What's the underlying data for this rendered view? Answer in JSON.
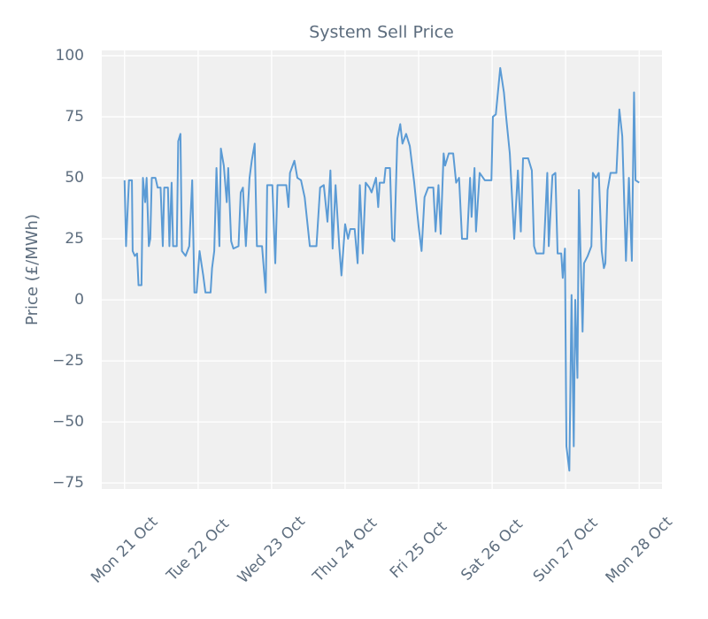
{
  "chart_data": {
    "type": "line",
    "title": "System Sell Price",
    "y_label": "Price (£/MWh)",
    "color": "#5b9bd5",
    "grid": true,
    "x": [
      0,
      0.02,
      0.06,
      0.1,
      0.11,
      0.14,
      0.17,
      0.19,
      0.23,
      0.25,
      0.28,
      0.3,
      0.33,
      0.35,
      0.37,
      0.42,
      0.45,
      0.49,
      0.52,
      0.54,
      0.59,
      0.61,
      0.64,
      0.66,
      0.71,
      0.73,
      0.76,
      0.78,
      0.83,
      0.88,
      0.92,
      0.95,
      0.98,
      1.02,
      1.07,
      1.1,
      1.17,
      1.19,
      1.22,
      1.25,
      1.29,
      1.31,
      1.35,
      1.39,
      1.41,
      1.45,
      1.48,
      1.55,
      1.58,
      1.61,
      1.65,
      1.7,
      1.73,
      1.77,
      1.8,
      1.87,
      1.92,
      1.94,
      2.01,
      2.05,
      2.08,
      2.2,
      2.23,
      2.25,
      2.31,
      2.35,
      2.4,
      2.45,
      2.52,
      2.61,
      2.66,
      2.71,
      2.76,
      2.8,
      2.83,
      2.87,
      2.92,
      2.95,
      3.0,
      3.04,
      3.07,
      3.13,
      3.17,
      3.2,
      3.24,
      3.28,
      3.33,
      3.36,
      3.42,
      3.45,
      3.47,
      3.53,
      3.55,
      3.61,
      3.64,
      3.67,
      3.71,
      3.75,
      3.78,
      3.83,
      3.88,
      3.94,
      4.0,
      4.04,
      4.08,
      4.13,
      4.2,
      4.23,
      4.27,
      4.3,
      4.34,
      4.36,
      4.41,
      4.47,
      4.51,
      4.55,
      4.59,
      4.66,
      4.7,
      4.72,
      4.76,
      4.78,
      4.83,
      4.9,
      4.99,
      5.01,
      5.05,
      5.11,
      5.16,
      5.19,
      5.24,
      5.3,
      5.35,
      5.39,
      5.42,
      5.49,
      5.54,
      5.57,
      5.6,
      5.7,
      5.75,
      5.77,
      5.82,
      5.86,
      5.89,
      5.94,
      5.96,
      5.99,
      6.01,
      6.05,
      6.08,
      6.11,
      6.13,
      6.16,
      6.18,
      6.23,
      6.25,
      6.3,
      6.35,
      6.37,
      6.41,
      6.45,
      6.49,
      6.52,
      6.54,
      6.57,
      6.61,
      6.69,
      6.73,
      6.77,
      6.82,
      6.86,
      6.9,
      6.93,
      6.95,
      7.0
    ],
    "values": [
      49,
      22,
      49,
      49,
      20,
      18,
      19,
      6,
      6,
      50,
      40,
      50,
      22,
      25,
      50,
      50,
      46,
      46,
      22,
      46,
      46,
      22,
      48,
      22,
      22,
      65,
      68,
      20,
      18,
      22,
      49,
      3,
      3,
      20,
      10,
      3,
      3,
      13,
      20,
      54,
      22,
      62,
      55,
      40,
      54,
      24,
      21,
      22,
      44,
      46,
      22,
      50,
      57,
      64,
      22,
      22,
      3,
      47,
      47,
      15,
      47,
      47,
      38,
      52,
      57,
      50,
      49,
      42,
      22,
      22,
      46,
      47,
      32,
      53,
      21,
      47,
      22,
      10,
      31,
      25,
      29,
      29,
      15,
      47,
      19,
      48,
      46,
      44,
      50,
      38,
      48,
      48,
      54,
      54,
      25,
      24,
      66,
      72,
      64,
      68,
      63,
      48,
      30,
      20,
      42,
      46,
      46,
      28,
      47,
      27,
      60,
      55,
      60,
      60,
      48,
      50,
      25,
      25,
      50,
      34,
      54,
      28,
      52,
      49,
      49,
      75,
      76,
      95,
      85,
      75,
      60,
      25,
      53,
      28,
      58,
      58,
      53,
      22,
      19,
      19,
      52,
      22,
      51,
      52,
      19,
      19,
      9,
      21,
      -60,
      -70,
      2,
      -60,
      0,
      -32,
      45,
      -13,
      15,
      18,
      22,
      52,
      50,
      52,
      20,
      13,
      15,
      45,
      52,
      52,
      78,
      67,
      16,
      50,
      16,
      85,
      49,
      48
    ],
    "xlim": [
      -0.31,
      7.31
    ],
    "xticks": [
      {
        "value": 0,
        "label": "Mon 21 Oct"
      },
      {
        "value": 1,
        "label": "Tue 22 Oct"
      },
      {
        "value": 2,
        "label": "Wed 23 Oct"
      },
      {
        "value": 3,
        "label": "Thu 24 Oct"
      },
      {
        "value": 4,
        "label": "Fri 25 Oct"
      },
      {
        "value": 5,
        "label": "Sat 26 Oct"
      },
      {
        "value": 6,
        "label": "Sun 27 Oct"
      },
      {
        "value": 7,
        "label": "Mon 28 Oct"
      }
    ],
    "ylim": [
      -77.5,
      102.2
    ],
    "yticks": [
      {
        "value": -75,
        "label": "−75"
      },
      {
        "value": -50,
        "label": "−50"
      },
      {
        "value": -25,
        "label": "−25"
      },
      0,
      25,
      50,
      75,
      100
    ]
  }
}
